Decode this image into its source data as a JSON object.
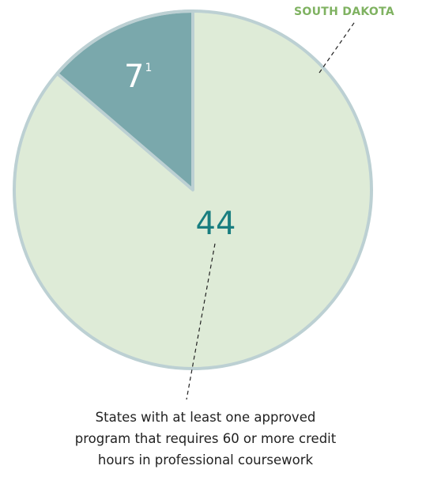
{
  "chart_data": {
    "type": "pie",
    "slices": [
      {
        "value": 7,
        "label": "7",
        "footnote": "1",
        "color": "#7aa8ac"
      },
      {
        "value": 44,
        "label": "44",
        "color": "#deebd7"
      }
    ],
    "callout_labels": {
      "state": "SOUTH DAKOTA"
    },
    "caption_lines": [
      "States with at least one approved",
      "program that requires 60 or more credit",
      "hours in professional coursework"
    ]
  },
  "colors": {
    "outline": "#bcd0d3",
    "small_label": "#ffffff",
    "large_label": "#197e80",
    "state_label": "#7fb261",
    "leader": "#222222"
  }
}
